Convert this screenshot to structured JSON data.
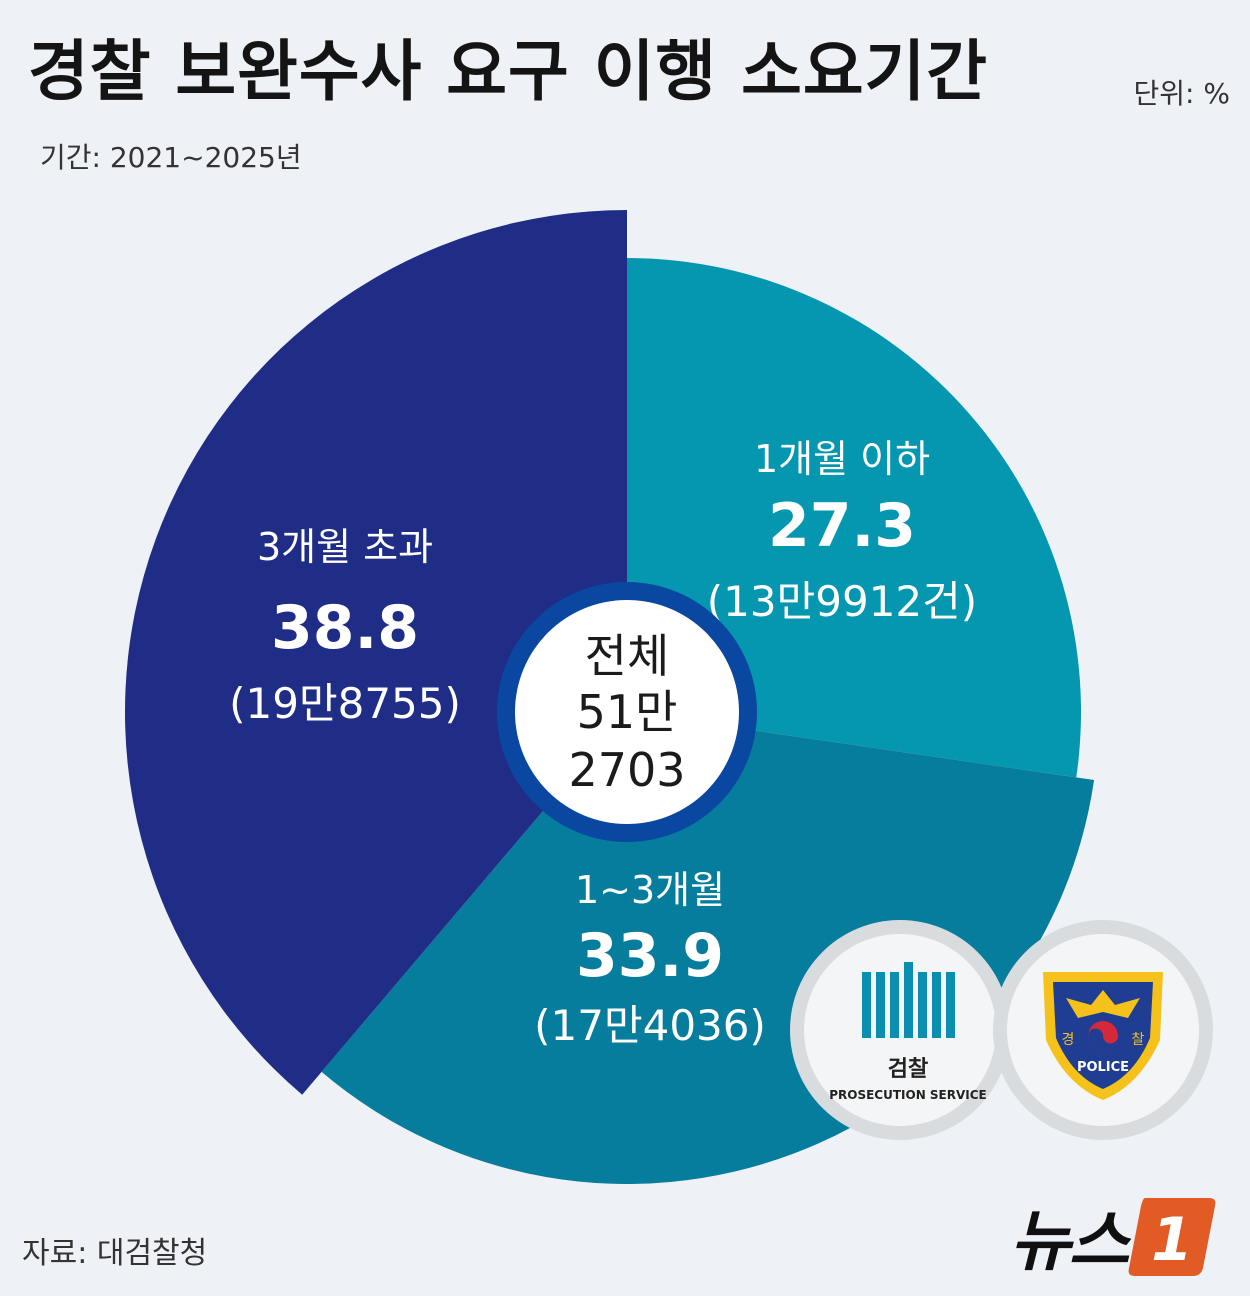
{
  "header": {
    "title": "경찰 보완수사 요구 이행 소요기간",
    "unit": "단위: %",
    "period": "기간: 2021~2025년"
  },
  "footer": {
    "source": "자료: 대검찰청",
    "brand": "뉴스",
    "brand_mark": "1"
  },
  "badges": {
    "prosecution_korean": "검찰",
    "prosecution_english": "PROSECUTION SERVICE",
    "police_korean_left": "경",
    "police_korean_right": "찰",
    "police_english": "POLICE"
  },
  "chart_data": {
    "type": "pie",
    "title": "경찰 보완수사 요구 이행 소요기간",
    "unit": "%",
    "center": {
      "label": "전체",
      "value_line1": "51만",
      "value_line2": "2703"
    },
    "slices": [
      {
        "name": "1개월 이하",
        "value": 27.3,
        "value_label": "27.3",
        "count_label": "(13만9912건)",
        "color": "#0596b0"
      },
      {
        "name": "1~3개월",
        "value": 33.9,
        "value_label": "33.9",
        "count_label": "(17만4036)",
        "color": "#067d9c"
      },
      {
        "name": "3개월 초과",
        "value": 38.8,
        "value_label": "38.8",
        "count_label": "(19만8755)",
        "color": "#1f2d87"
      }
    ]
  }
}
